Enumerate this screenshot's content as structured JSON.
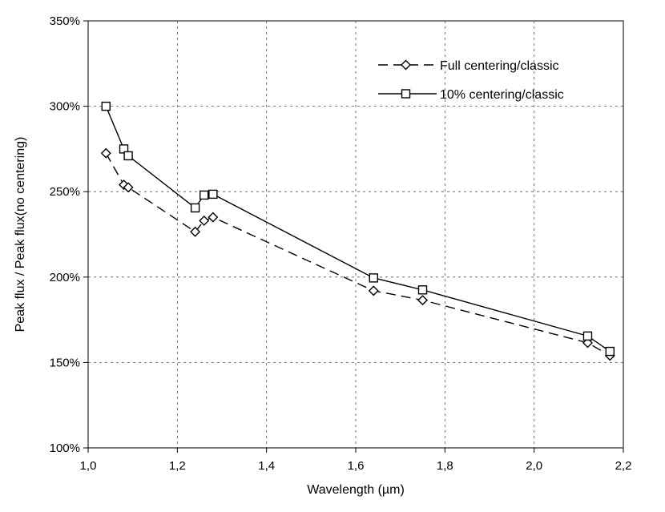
{
  "chart_data": {
    "type": "line",
    "title": "",
    "xlabel": "Wavelength (µm)",
    "ylabel": "Peak flux / Peak flux(no centering)",
    "xlim": [
      1.0,
      2.2
    ],
    "ylim": [
      100,
      350
    ],
    "x_ticks": [
      "1,0",
      "1,2",
      "1,4",
      "1,6",
      "1,8",
      "2,0",
      "2,2"
    ],
    "y_ticks": [
      "100%",
      "150%",
      "200%",
      "250%",
      "300%",
      "350%"
    ],
    "grid": true,
    "legend_position": "top-right",
    "series": [
      {
        "name": "Full centering/classic",
        "line_style": "dashed",
        "marker": "diamond",
        "x": [
          1.04,
          1.08,
          1.09,
          1.24,
          1.26,
          1.28,
          1.64,
          1.75,
          2.12,
          2.17
        ],
        "y": [
          272.5,
          254,
          252.5,
          226.5,
          233,
          235,
          192,
          186.5,
          161.5,
          154
        ]
      },
      {
        "name": "10% centering/classic",
        "line_style": "solid",
        "marker": "square",
        "x": [
          1.04,
          1.08,
          1.09,
          1.24,
          1.26,
          1.28,
          1.64,
          1.75,
          2.12,
          2.17
        ],
        "y": [
          300,
          275,
          271,
          240.5,
          248,
          248.5,
          199.5,
          192.5,
          165.5,
          156.5
        ]
      }
    ]
  }
}
